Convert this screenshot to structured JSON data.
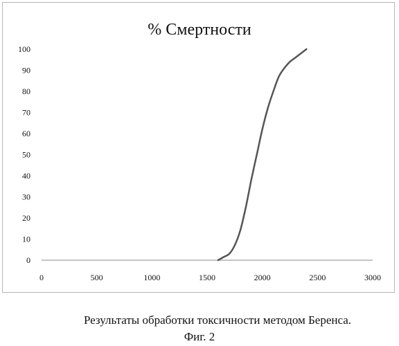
{
  "chart_data": {
    "type": "line",
    "title": "% Смертности",
    "xlabel": "",
    "ylabel": "",
    "xlim": [
      0,
      3000
    ],
    "ylim": [
      0,
      100
    ],
    "x_ticks": [
      0,
      500,
      1000,
      1500,
      2000,
      2500,
      3000
    ],
    "y_ticks": [
      0,
      10,
      20,
      30,
      40,
      50,
      60,
      70,
      80,
      90,
      100
    ],
    "grid": false,
    "legend": "none",
    "series": [
      {
        "color": "#555555",
        "x": [
          1600,
          1650,
          1700,
          1750,
          1800,
          1850,
          1900,
          1950,
          2000,
          2050,
          2100,
          2150,
          2200,
          2250,
          2300,
          2350,
          2400
        ],
        "y": [
          0,
          1.5,
          3,
          7,
          14,
          25,
          38,
          50,
          62,
          72,
          80,
          87,
          91,
          94,
          96,
          98,
          100
        ]
      }
    ]
  },
  "caption": {
    "text": "Результаты обработки токсичности методом Беренса.",
    "figure": "Фиг. 2"
  }
}
